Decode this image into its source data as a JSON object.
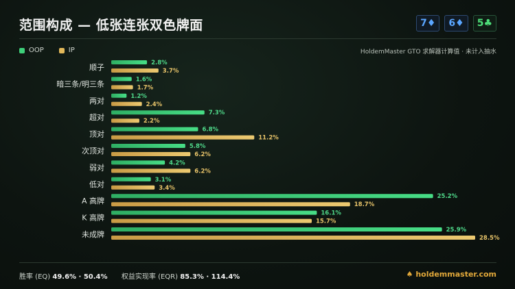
{
  "title": "范围构成 — 低张连张双色牌面",
  "board": [
    {
      "rank": "7",
      "suit": "♦",
      "color": "diamond"
    },
    {
      "rank": "6",
      "suit": "♦",
      "color": "diamond"
    },
    {
      "rank": "5",
      "suit": "♣",
      "color": "club"
    }
  ],
  "legend": {
    "oop": "OOP",
    "ip": "IP"
  },
  "source": "HoldemMaster GTO 求解器计算值 · 未计入抽水",
  "footer": {
    "eq_label": "胜率 (EQ)",
    "eq_value": "49.6% · 50.4%",
    "eqr_label": "权益实现率 (EQR)",
    "eqr_value": "85.3% · 114.4%",
    "brand": "holdemmaster.com"
  },
  "chart_data": {
    "type": "bar",
    "orientation": "horizontal",
    "categories": [
      "顺子",
      "暗三条/明三条",
      "两对",
      "超对",
      "顶对",
      "次顶对",
      "弱对",
      "低对",
      "A 高牌",
      "K 高牌",
      "未成牌"
    ],
    "series": [
      {
        "name": "OOP",
        "color": "#3ecf7a",
        "values": [
          2.8,
          1.6,
          1.2,
          7.3,
          6.8,
          5.8,
          4.2,
          3.1,
          25.2,
          16.1,
          25.9
        ]
      },
      {
        "name": "IP",
        "color": "#e2b85a",
        "values": [
          3.7,
          1.7,
          2.4,
          2.2,
          11.2,
          6.2,
          6.2,
          3.4,
          18.7,
          15.7,
          28.5
        ]
      }
    ],
    "value_suffix": "%",
    "xlim": [
      0,
      28.5
    ],
    "legend_position": "top-left"
  }
}
